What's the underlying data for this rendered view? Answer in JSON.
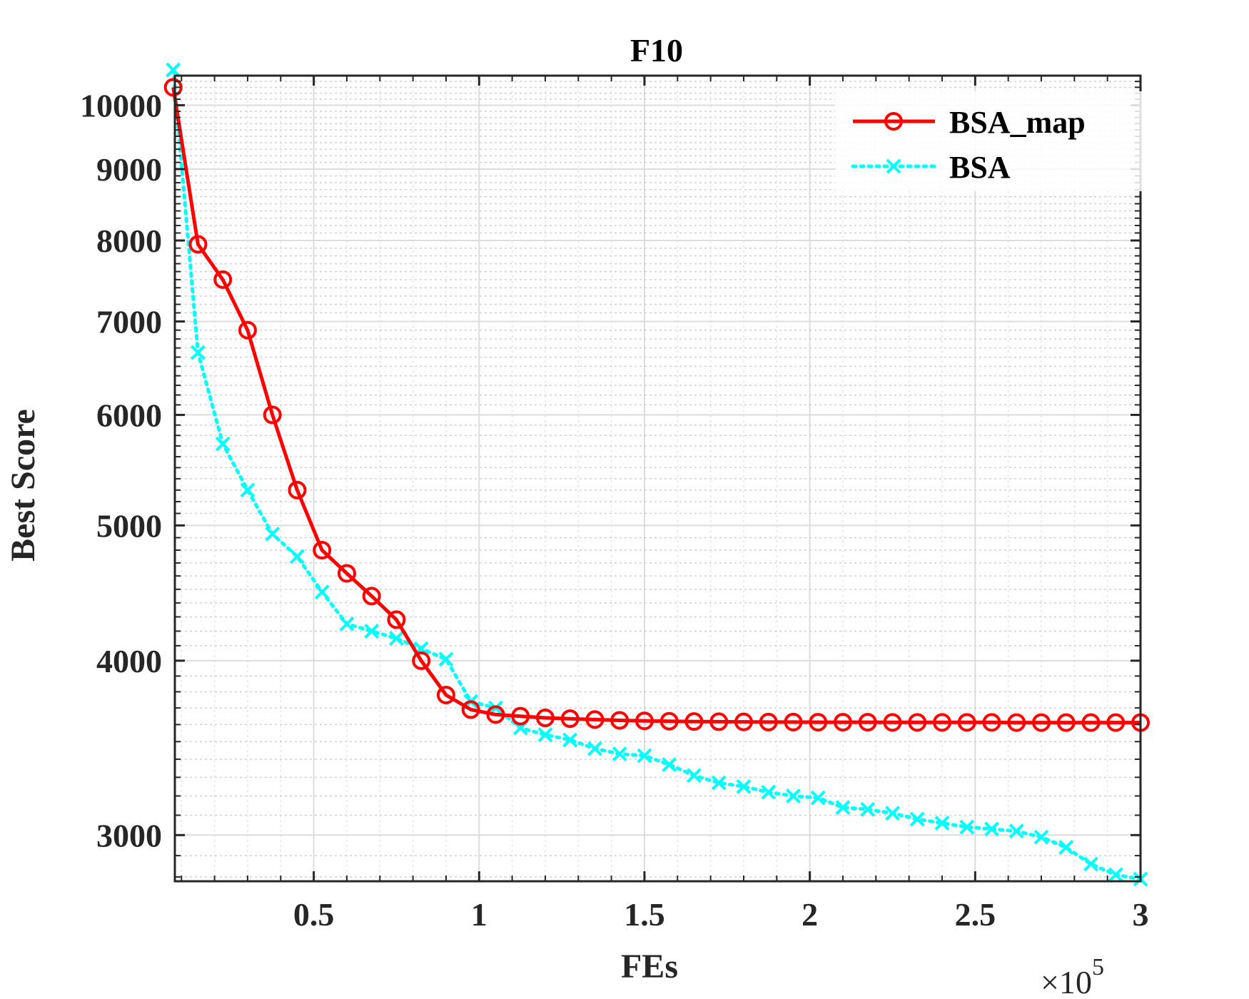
{
  "chart_data": {
    "type": "line",
    "title": "F10",
    "xlabel": "FEs",
    "ylabel": "Best Score",
    "x_exponent_label": {
      "base": "×10",
      "power": "5"
    },
    "x_scale": "linear",
    "y_scale": "log",
    "xlim": [
      0.08,
      3.0
    ],
    "ylim": [
      2780,
      10500
    ],
    "x_ticks": [
      0.5,
      1,
      1.5,
      2,
      2.5,
      3
    ],
    "x_tick_labels": [
      "0.5",
      "1",
      "1.5",
      "2",
      "2.5",
      "3"
    ],
    "y_ticks": [
      3000,
      4000,
      5000,
      6000,
      7000,
      8000,
      9000,
      10000
    ],
    "y_tick_labels": [
      "3000",
      "4000",
      "5000",
      "6000",
      "7000",
      "8000",
      "9000",
      "10000"
    ],
    "grid": true,
    "legend": "top-right",
    "series": [
      {
        "name": "BSA_map",
        "color": "#ff0000",
        "line": "solid",
        "marker": "circle",
        "x": [
          0.075,
          0.15,
          0.225,
          0.3,
          0.375,
          0.45,
          0.525,
          0.6,
          0.675,
          0.75,
          0.825,
          0.9,
          0.975,
          1.05,
          1.125,
          1.2,
          1.275,
          1.35,
          1.425,
          1.5,
          1.575,
          1.65,
          1.725,
          1.8,
          1.875,
          1.95,
          2.025,
          2.1,
          2.175,
          2.25,
          2.325,
          2.4,
          2.475,
          2.55,
          2.625,
          2.7,
          2.775,
          2.85,
          2.925,
          3.0
        ],
        "y": [
          10300,
          7950,
          7500,
          6900,
          6000,
          5300,
          4800,
          4620,
          4450,
          4280,
          4000,
          3780,
          3690,
          3660,
          3650,
          3640,
          3635,
          3630,
          3625,
          3622,
          3620,
          3618,
          3617,
          3616,
          3615,
          3615,
          3614,
          3614,
          3614,
          3613,
          3613,
          3613,
          3613,
          3613,
          3612,
          3612,
          3612,
          3612,
          3612,
          3612
        ]
      },
      {
        "name": "BSA",
        "color": "#00ffff",
        "line": "dotted",
        "marker": "x",
        "x": [
          0.075,
          0.15,
          0.225,
          0.3,
          0.375,
          0.45,
          0.525,
          0.6,
          0.675,
          0.75,
          0.825,
          0.9,
          0.975,
          1.05,
          1.125,
          1.2,
          1.275,
          1.35,
          1.425,
          1.5,
          1.575,
          1.65,
          1.725,
          1.8,
          1.875,
          1.95,
          2.025,
          2.1,
          2.175,
          2.25,
          2.325,
          2.4,
          2.475,
          2.55,
          2.625,
          2.7,
          2.775,
          2.85,
          2.925,
          3.0
        ],
        "y": [
          10600,
          6650,
          5720,
          5300,
          4930,
          4750,
          4480,
          4250,
          4200,
          4150,
          4080,
          4010,
          3740,
          3700,
          3580,
          3540,
          3510,
          3460,
          3430,
          3420,
          3370,
          3310,
          3270,
          3250,
          3220,
          3200,
          3190,
          3140,
          3130,
          3110,
          3080,
          3060,
          3040,
          3030,
          3020,
          2990,
          2940,
          2860,
          2810,
          2790
        ]
      }
    ]
  }
}
